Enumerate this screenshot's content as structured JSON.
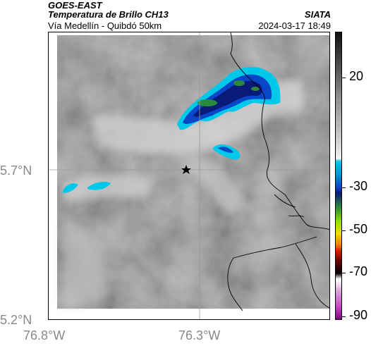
{
  "header": {
    "satellite": "GOES-EAST",
    "product": "Temperatura de Brillo CH13",
    "organization": "SIATA",
    "route": "Vía Medellín - Quibdó 50km",
    "timestamp": "2024-03-17 18:49"
  },
  "map": {
    "lat_labels": [
      "5.7°N",
      "5.2°N"
    ],
    "lon_labels": [
      "76.8°W",
      "76.3°W"
    ],
    "gridlines": true,
    "marker": "star-icon"
  },
  "colorbar": {
    "ticks": [
      "20",
      "-30",
      "-50",
      "-70",
      "-90"
    ],
    "colors": {
      "warm_gray": "#8a8a8a",
      "cyan": "#00c8e8",
      "blue": "#0a46c8",
      "navy": "#0a1a78",
      "green": "#2a8a3a",
      "yellow": "#f0e000",
      "red": "#e02000",
      "black": "#000000",
      "magenta": "#c040c0"
    }
  }
}
